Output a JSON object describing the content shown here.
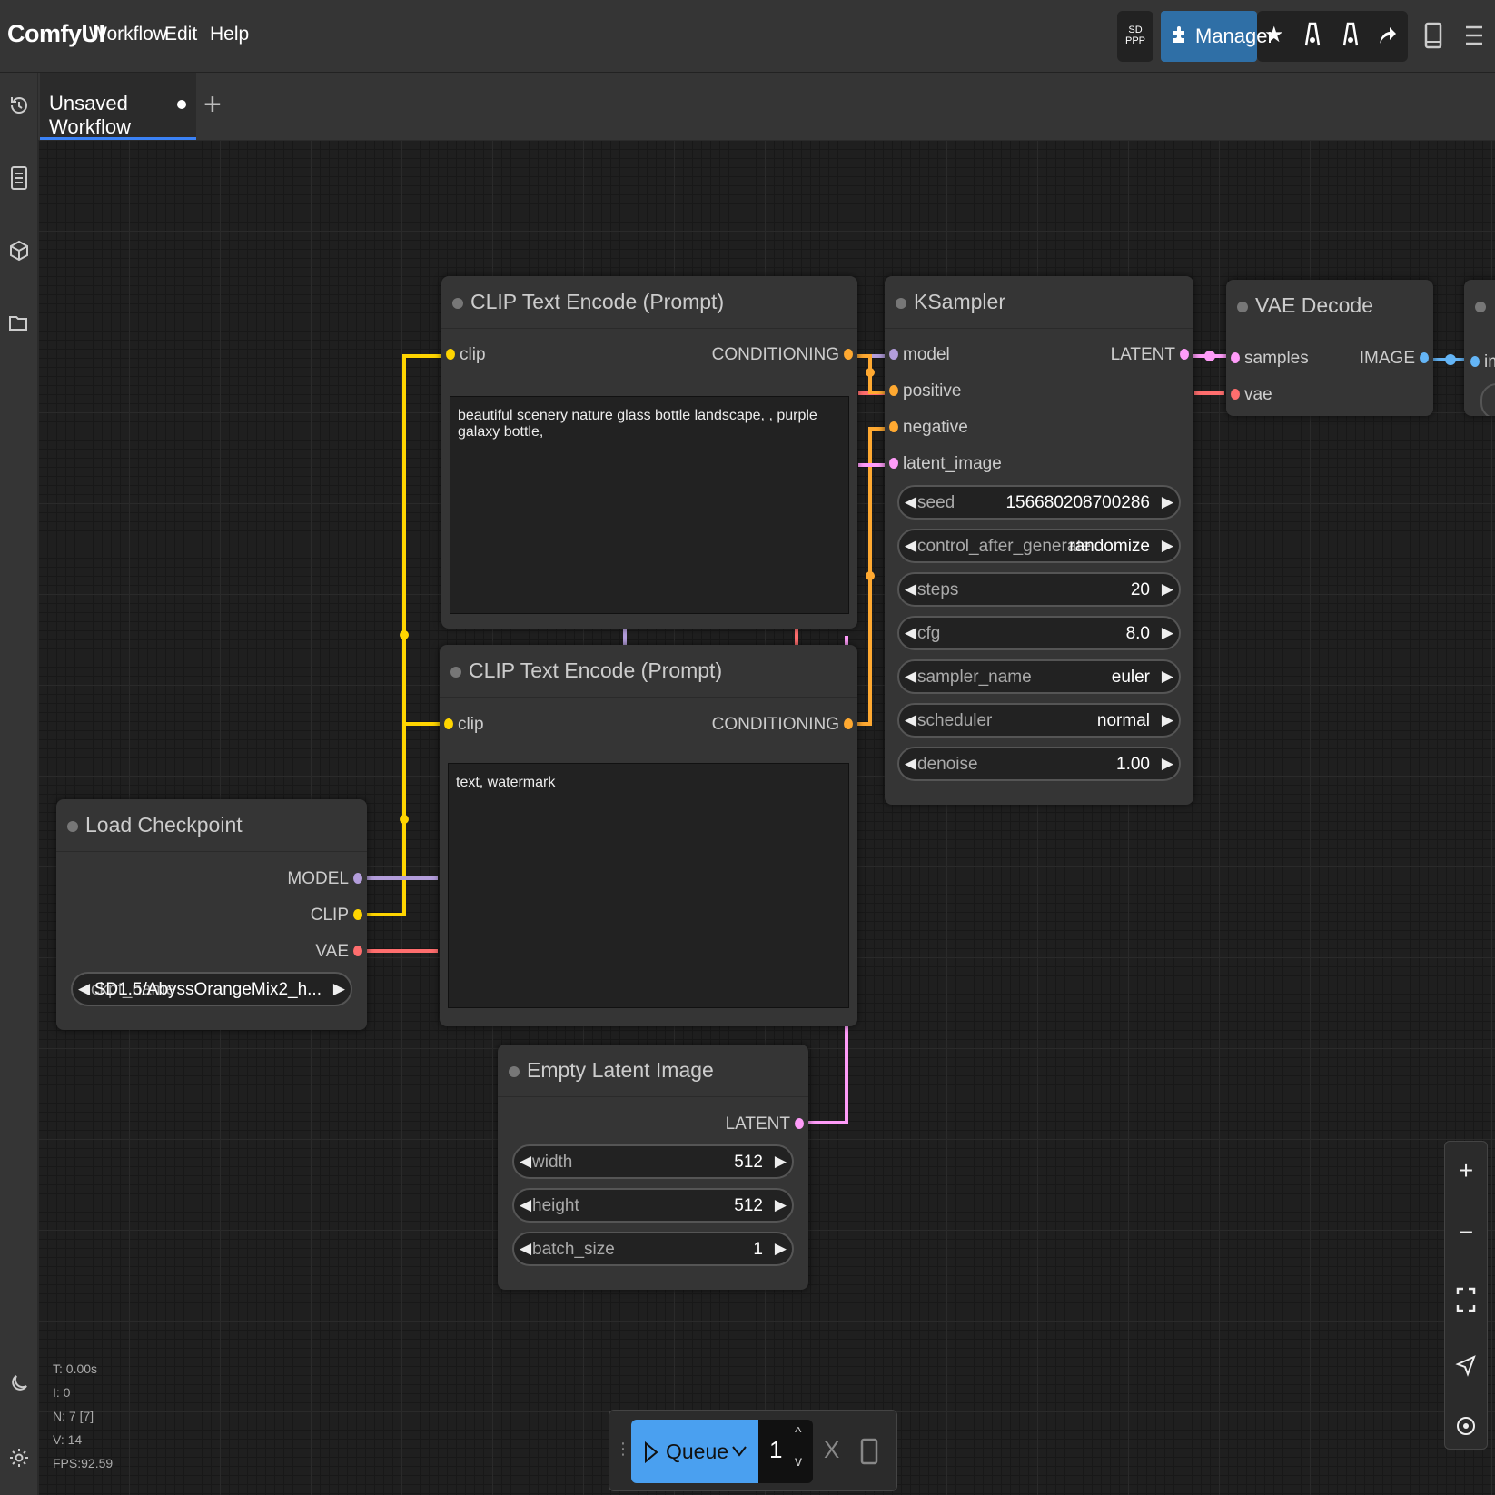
{
  "app": {
    "brand": "ComfyUI"
  },
  "menu": {
    "workflow": "Workflow",
    "edit": "Edit",
    "help": "Help"
  },
  "toolbar": {
    "sdppp_line1": "SD",
    "sdppp_line2": "PPP",
    "manager_label": "Manager"
  },
  "tabs": [
    {
      "label": "Unsaved Workflow"
    }
  ],
  "nodes": {
    "clip_pos": {
      "title": "CLIP Text Encode (Prompt)",
      "input": "clip",
      "output": "CONDITIONING",
      "text": "beautiful scenery nature glass bottle landscape, , purple galaxy bottle,"
    },
    "clip_neg": {
      "title": "CLIP Text Encode (Prompt)",
      "input": "clip",
      "output": "CONDITIONING",
      "text": "text, watermark"
    },
    "ksampler": {
      "title": "KSampler",
      "inputs": [
        "model",
        "positive",
        "negative",
        "latent_image"
      ],
      "output": "LATENT",
      "widgets": [
        {
          "label": "seed",
          "value": "156680208700286"
        },
        {
          "label": "control_after_generate",
          "value": "randomize"
        },
        {
          "label": "steps",
          "value": "20"
        },
        {
          "label": "cfg",
          "value": "8.0"
        },
        {
          "label": "sampler_name",
          "value": "euler"
        },
        {
          "label": "scheduler",
          "value": "normal"
        },
        {
          "label": "denoise",
          "value": "1.00"
        }
      ]
    },
    "vae_decode": {
      "title": "VAE Decode",
      "inputs": [
        "samples",
        "vae"
      ],
      "output": "IMAGE",
      "next_input": "im"
    },
    "load_checkpoint": {
      "title": "Load Checkpoint",
      "outputs": [
        "MODEL",
        "CLIP",
        "VAE"
      ],
      "widget": {
        "label": "ckpt_name",
        "value": "SD1.5/AbyssOrangeMix2_h..."
      }
    },
    "empty_latent": {
      "title": "Empty Latent Image",
      "output": "LATENT",
      "widgets": [
        {
          "label": "width",
          "value": "512"
        },
        {
          "label": "height",
          "value": "512"
        },
        {
          "label": "batch_size",
          "value": "1"
        }
      ]
    }
  },
  "stats": {
    "t": "T: 0.00s",
    "i": "I: 0",
    "n": "N: 7 [7]",
    "v": "V: 14",
    "fps": "FPS:92.59"
  },
  "queue": {
    "label": "Queue",
    "count": "1",
    "cancel": "X"
  },
  "colors": {
    "clip": "#ffd500",
    "model": "#b39ddb",
    "vae": "#ff6e6e",
    "latent": "#ff9cf9",
    "conditioning": "#ffa931",
    "image": "#64b5f6",
    "accent": "#3b82f6"
  }
}
